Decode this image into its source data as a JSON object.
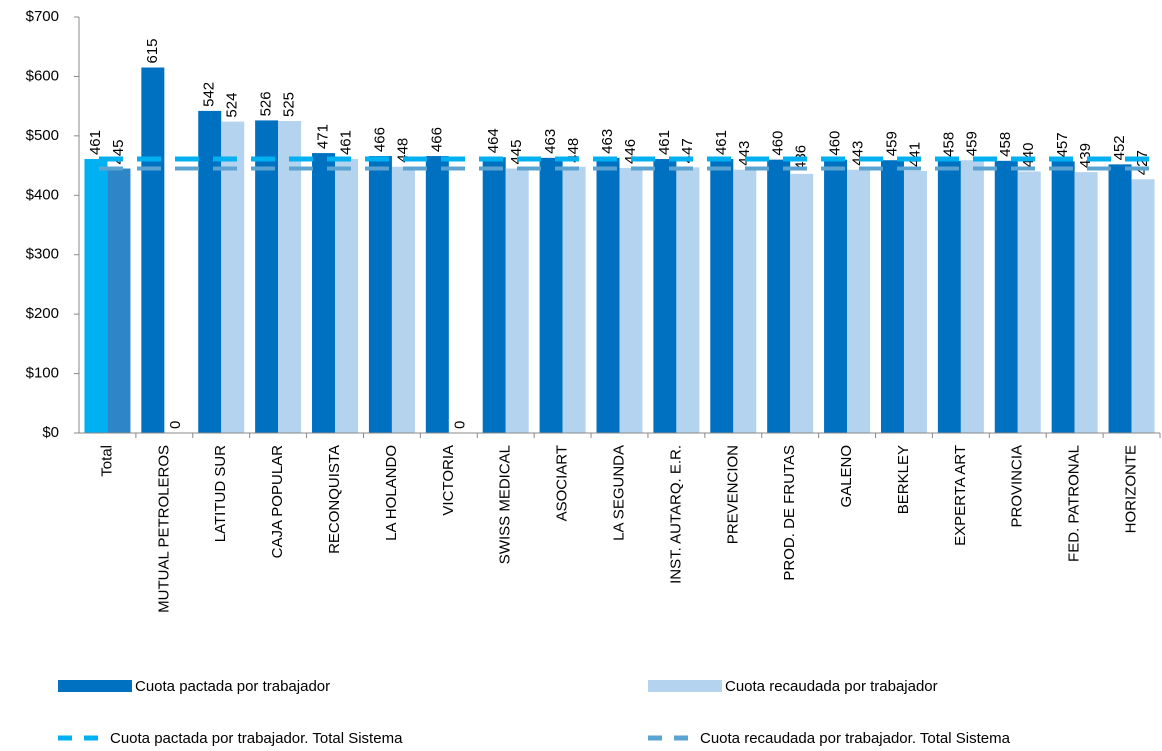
{
  "chart_data": {
    "type": "bar",
    "categories": [
      "Total",
      "MUTUAL PETROLEROS",
      "LATITUD SUR",
      "CAJA POPULAR",
      "RECONQUISTA",
      "LA HOLANDO",
      "VICTORIA",
      "SWISS MEDICAL",
      "ASOCIART",
      "LA SEGUNDA",
      "INST. AUTARQ. E.R.",
      "PREVENCION",
      "PROD. DE FRUTAS",
      "GALENO",
      "BERKLEY",
      "EXPERTA ART",
      "PROVINCIA",
      "FED. PATRONAL",
      "HORIZONTE"
    ],
    "series": [
      {
        "name": "Cuota pactada por trabajador",
        "color": "#0070c0",
        "first_color": "#00b0f0",
        "values": [
          461,
          615,
          542,
          526,
          471,
          466,
          466,
          464,
          463,
          463,
          461,
          461,
          460,
          460,
          459,
          458,
          458,
          457,
          452
        ]
      },
      {
        "name": "Cuota recaudada por trabajador",
        "color": "#b4d3ee",
        "first_color": "#2e86c8",
        "values": [
          445,
          0,
          524,
          525,
          461,
          448,
          0,
          445,
          448,
          446,
          447,
          443,
          436,
          443,
          441,
          459,
          440,
          439,
          427
        ]
      }
    ],
    "reference_lines": [
      {
        "name": "Cuota pactada por trabajador. Total Sistema",
        "value": 461,
        "color": "#00b0f0"
      },
      {
        "name": "Cuota recaudada por trabajador. Total Sistema",
        "value": 445,
        "color": "#5ba3d0"
      }
    ],
    "ylim": [
      0,
      700
    ],
    "yticks": [
      {
        "value": 0,
        "label": "$0"
      },
      {
        "value": 100,
        "label": "$100"
      },
      {
        "value": 200,
        "label": "$200"
      },
      {
        "value": 300,
        "label": "$300"
      },
      {
        "value": 400,
        "label": "$400"
      },
      {
        "value": 500,
        "label": "$500"
      },
      {
        "value": 600,
        "label": "$600"
      },
      {
        "value": 700,
        "label": "$700"
      }
    ],
    "grid": false
  }
}
